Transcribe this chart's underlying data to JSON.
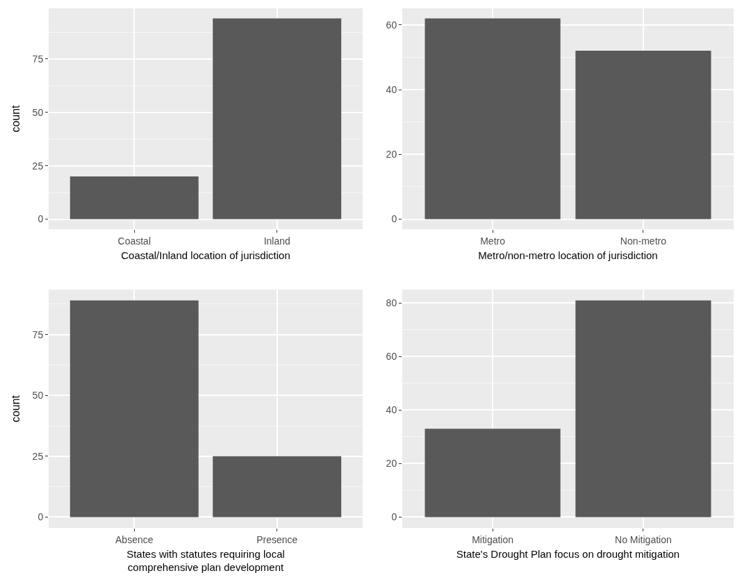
{
  "chart_data": [
    {
      "type": "bar",
      "xlabel": "Coastal/Inland location of jurisdiction",
      "ylabel": "count",
      "categories": [
        "Coastal",
        "Inland"
      ],
      "values": [
        20,
        94
      ],
      "color": "#595959",
      "ylim": [
        -4.7,
        98.7
      ],
      "yticks": [
        0,
        25,
        50,
        75
      ],
      "grid": true
    },
    {
      "type": "bar",
      "xlabel": "Metro/non-metro location of jurisdiction",
      "categories": [
        "Metro",
        "Non-metro"
      ],
      "values": [
        62,
        52
      ],
      "color": "#595959",
      "ylim": [
        -3.1,
        65.1
      ],
      "yticks": [
        0,
        20,
        40,
        60
      ],
      "grid": true
    },
    {
      "type": "bar",
      "xlabel": "States with statutes requiring local\ncomprehensive plan development",
      "ylabel": "count",
      "categories": [
        "Absence",
        "Presence"
      ],
      "values": [
        89,
        25
      ],
      "color": "#595959",
      "ylim": [
        -4.45,
        93.45
      ],
      "yticks": [
        0,
        25,
        50,
        75
      ],
      "grid": true
    },
    {
      "type": "bar",
      "xlabel": "State's Drought Plan focus on drought mitigation",
      "categories": [
        "Mitigation",
        "No Mitigation"
      ],
      "values": [
        33,
        81
      ],
      "color": "#595959",
      "ylim": [
        -4.05,
        85.05
      ],
      "yticks": [
        0,
        20,
        40,
        60,
        80
      ],
      "grid": true
    }
  ]
}
